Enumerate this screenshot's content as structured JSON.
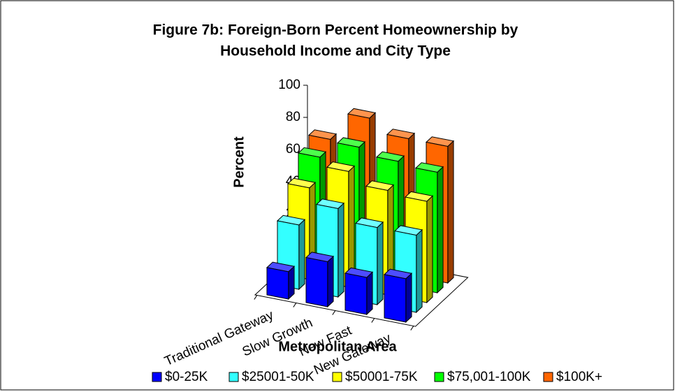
{
  "chart_data": {
    "type": "bar3d",
    "title": [
      "Figure 7b: Foreign-Born Percent Homeownership by",
      "Household Income and City Type"
    ],
    "xlabel": "Metropolitan Area",
    "ylabel": "Percent",
    "categories": [
      "Traditional Gateway",
      "Slow Growth",
      "New Fast",
      "New Gateway"
    ],
    "series": [
      {
        "name": "$0-25K",
        "color": "#0000ff",
        "values": [
          17,
          28,
          23,
          27
        ]
      },
      {
        "name": "$25001-50K",
        "color": "#33ffff",
        "values": [
          40,
          55,
          48,
          48
        ]
      },
      {
        "name": "$50001-75K",
        "color": "#ffff00",
        "values": [
          57,
          72,
          65,
          63
        ]
      },
      {
        "name": "$75,001-100K",
        "color": "#00ff00",
        "values": [
          70,
          81,
          77,
          75
        ]
      },
      {
        "name": "$100K+",
        "color": "#ff6600",
        "values": [
          75,
          93,
          85,
          85
        ]
      }
    ],
    "ylim": [
      0,
      100
    ],
    "yticks": [
      0,
      20,
      40,
      60,
      80,
      100
    ],
    "legend": "bottom"
  }
}
